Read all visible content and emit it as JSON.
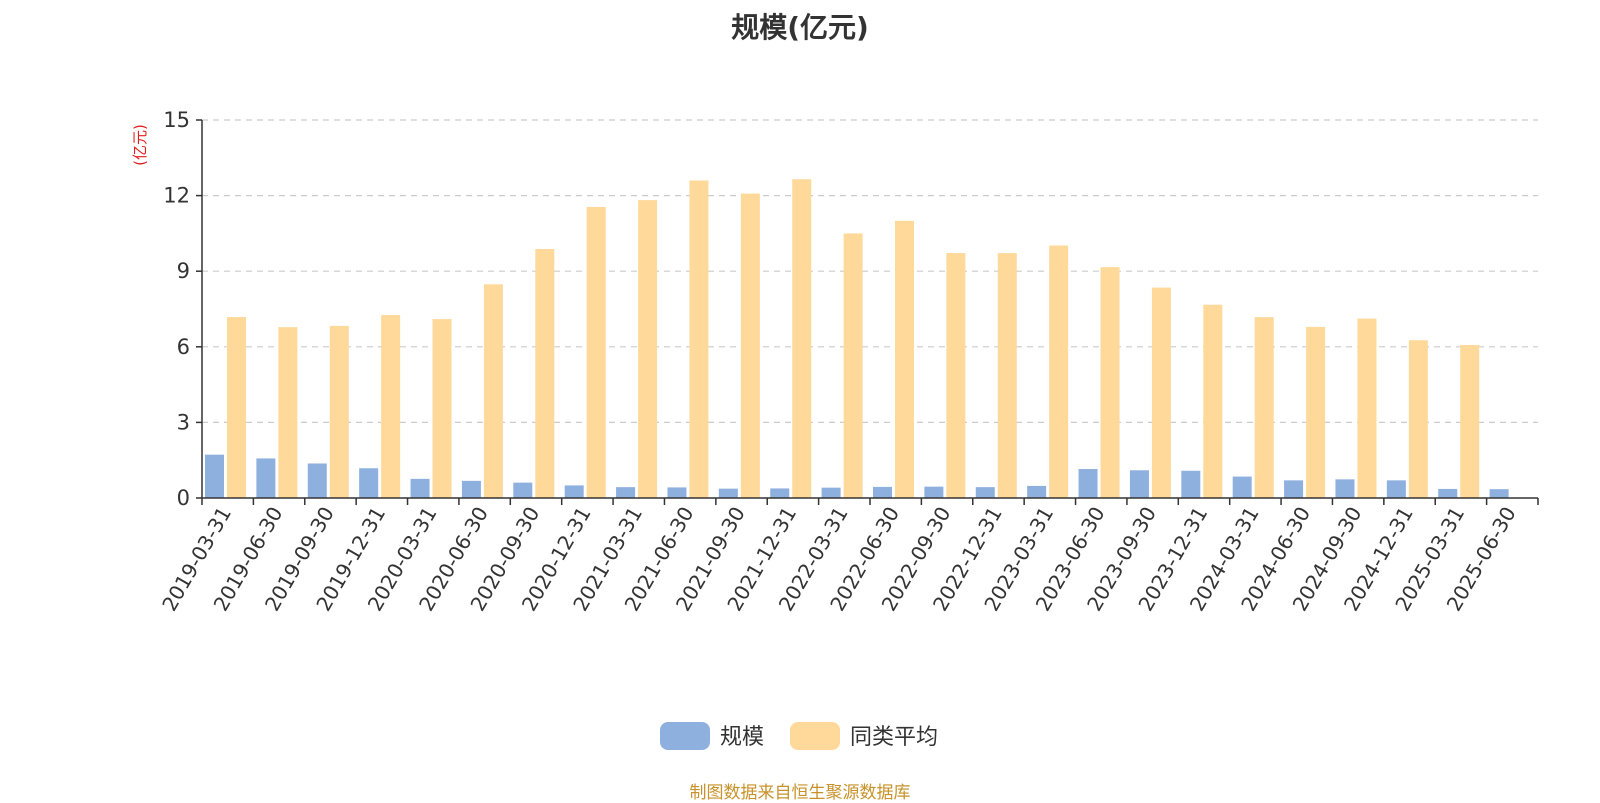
{
  "chart_data": {
    "type": "bar",
    "title": "规模(亿元)",
    "ylabel": "(亿元)",
    "xlabel": "",
    "ylim": [
      0,
      15
    ],
    "yticks": [
      0,
      3,
      6,
      9,
      12,
      15
    ],
    "grid": true,
    "legend_position": "bottom",
    "categories": [
      "2019-03-31",
      "2019-06-30",
      "2019-09-30",
      "2019-12-31",
      "2020-03-31",
      "2020-06-30",
      "2020-09-30",
      "2020-12-31",
      "2021-03-31",
      "2021-06-30",
      "2021-09-30",
      "2021-12-31",
      "2022-03-31",
      "2022-06-30",
      "2022-09-30",
      "2022-12-31",
      "2023-03-31",
      "2023-06-30",
      "2023-09-30",
      "2023-12-31",
      "2024-03-31",
      "2024-06-30",
      "2024-09-30",
      "2024-12-31",
      "2025-03-31",
      "2025-06-30"
    ],
    "series": [
      {
        "name": "规模",
        "color": "#8eb0df",
        "values": [
          1.72,
          1.57,
          1.37,
          1.18,
          0.76,
          0.68,
          0.61,
          0.5,
          0.43,
          0.42,
          0.37,
          0.38,
          0.41,
          0.44,
          0.45,
          0.43,
          0.48,
          1.15,
          1.1,
          1.08,
          0.85,
          0.7,
          0.74,
          0.7,
          0.36,
          0.35
        ]
      },
      {
        "name": "同类平均",
        "color": "#ffd999",
        "values": [
          7.18,
          6.78,
          6.83,
          7.26,
          7.1,
          8.48,
          9.88,
          11.55,
          11.82,
          12.6,
          12.08,
          12.65,
          10.5,
          11.0,
          9.72,
          9.72,
          10.02,
          9.16,
          8.35,
          7.67,
          7.18,
          6.79,
          7.12,
          6.26,
          6.07,
          null
        ]
      }
    ]
  },
  "source_note": "制图数据来自恒生聚源数据库",
  "colors": {
    "axis": "#333333",
    "grid": "#cccccc",
    "unit_label": "#e02020",
    "source_note": "#c8922a"
  }
}
